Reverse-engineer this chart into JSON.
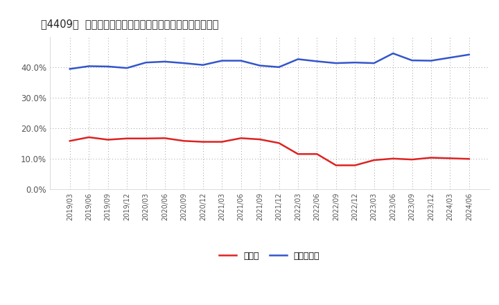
{
  "title": "[４４０９] 現顔金、有利子負債の総資産に対する比率の推移",
  "title_raw": "[〃4409〃] 現顔金、有利子負債の総資産に対する比率の推移",
  "x_labels": [
    "2019/03",
    "2019/06",
    "2019/09",
    "2019/12",
    "2020/03",
    "2020/06",
    "2020/09",
    "2020/12",
    "2021/03",
    "2021/06",
    "2021/09",
    "2021/12",
    "2022/03",
    "2022/06",
    "2022/09",
    "2022/12",
    "2023/03",
    "2023/06",
    "2023/09",
    "2023/12",
    "2024/03",
    "2024/06"
  ],
  "cash": [
    0.158,
    0.17,
    0.162,
    0.166,
    0.166,
    0.167,
    0.158,
    0.155,
    0.155,
    0.167,
    0.163,
    0.151,
    0.115,
    0.115,
    0.078,
    0.078,
    0.095,
    0.1,
    0.097,
    0.103,
    0.101,
    0.099
  ],
  "debt": [
    0.394,
    0.403,
    0.402,
    0.397,
    0.415,
    0.418,
    0.413,
    0.407,
    0.421,
    0.421,
    0.405,
    0.4,
    0.426,
    0.419,
    0.413,
    0.415,
    0.413,
    0.445,
    0.422,
    0.421,
    0.431,
    0.441
  ],
  "cash_color": "#dd2222",
  "debt_color": "#3355cc",
  "grid_color": "#999999",
  "bg_color": "#ffffff",
  "legend_cash": "現顔金",
  "legend_debt": "有利子負債",
  "ylim": [
    0.0,
    0.5
  ],
  "yticks": [
    0.0,
    0.1,
    0.2,
    0.3,
    0.4
  ],
  "line_width": 1.8
}
